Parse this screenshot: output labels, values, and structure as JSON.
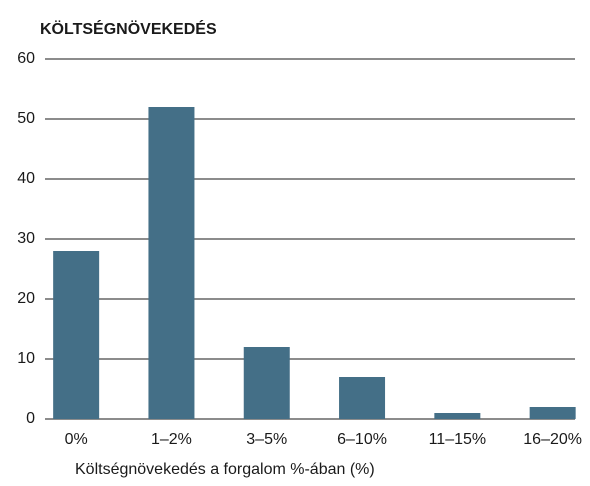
{
  "chart_data": {
    "type": "bar",
    "title": "KÖLTSÉGNÖVEKEDÉS",
    "x_label": "Költségnövekedés a forgalom %-ában (%)",
    "categories": [
      "0%",
      "1–2%",
      "3–5%",
      "6–10%",
      "11–15%",
      "16–20%"
    ],
    "values": [
      28,
      52,
      12,
      7,
      1,
      2
    ],
    "color": "#446f87",
    "ylim": [
      0,
      60
    ],
    "yticks": [
      0,
      10,
      20,
      30,
      40,
      50,
      60
    ],
    "grid": true
  }
}
